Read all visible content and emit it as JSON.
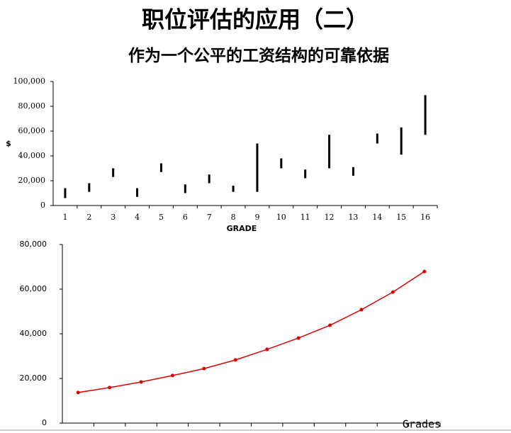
{
  "header": {
    "title": "职位评估的应用（二）",
    "subtitle": "作为一个公平的工资结构的可靠依据"
  },
  "chart_data": [
    {
      "type": "range-bar",
      "color": "#000000",
      "ylabel": "$",
      "xlabel": "GRADE",
      "categories": [
        "1",
        "2",
        "3",
        "4",
        "5",
        "6",
        "7",
        "8",
        "9",
        "10",
        "11",
        "12",
        "13",
        "14",
        "15",
        "16"
      ],
      "low": [
        6000,
        11000,
        23000,
        7000,
        27000,
        10000,
        18000,
        11000,
        11000,
        30000,
        22000,
        30000,
        24000,
        50000,
        41000,
        57000
      ],
      "high": [
        14000,
        18000,
        30000,
        14000,
        34000,
        17000,
        25000,
        16000,
        50000,
        38000,
        29000,
        57000,
        31000,
        58000,
        63000,
        89000
      ],
      "ylim": [
        0,
        100000
      ],
      "yticks": [
        0,
        {
          "value": 20000,
          "label": "20,000"
        },
        {
          "value": 40000,
          "label": "40,000"
        },
        {
          "value": 60000,
          "label": "60,000"
        },
        {
          "value": 80000,
          "label": "80,000"
        },
        {
          "value": 100000,
          "label": "100,000"
        }
      ]
    },
    {
      "type": "line",
      "color": "#e00000",
      "xlabel": "Grades",
      "categories": [
        null,
        null,
        null,
        null,
        null,
        null,
        null,
        null,
        null,
        null,
        null,
        null
      ],
      "values": [
        13700,
        15900,
        18400,
        21300,
        24400,
        28300,
        33000,
        38100,
        43800,
        50800,
        58700,
        67900
      ],
      "ylim": [
        0,
        80000
      ],
      "yticks": [
        0,
        {
          "value": 20000,
          "label": "20,000"
        },
        {
          "value": 40000,
          "label": "40,000"
        },
        {
          "value": 60000,
          "label": "60,000"
        },
        {
          "value": 80000,
          "label": "80,000"
        }
      ]
    }
  ]
}
